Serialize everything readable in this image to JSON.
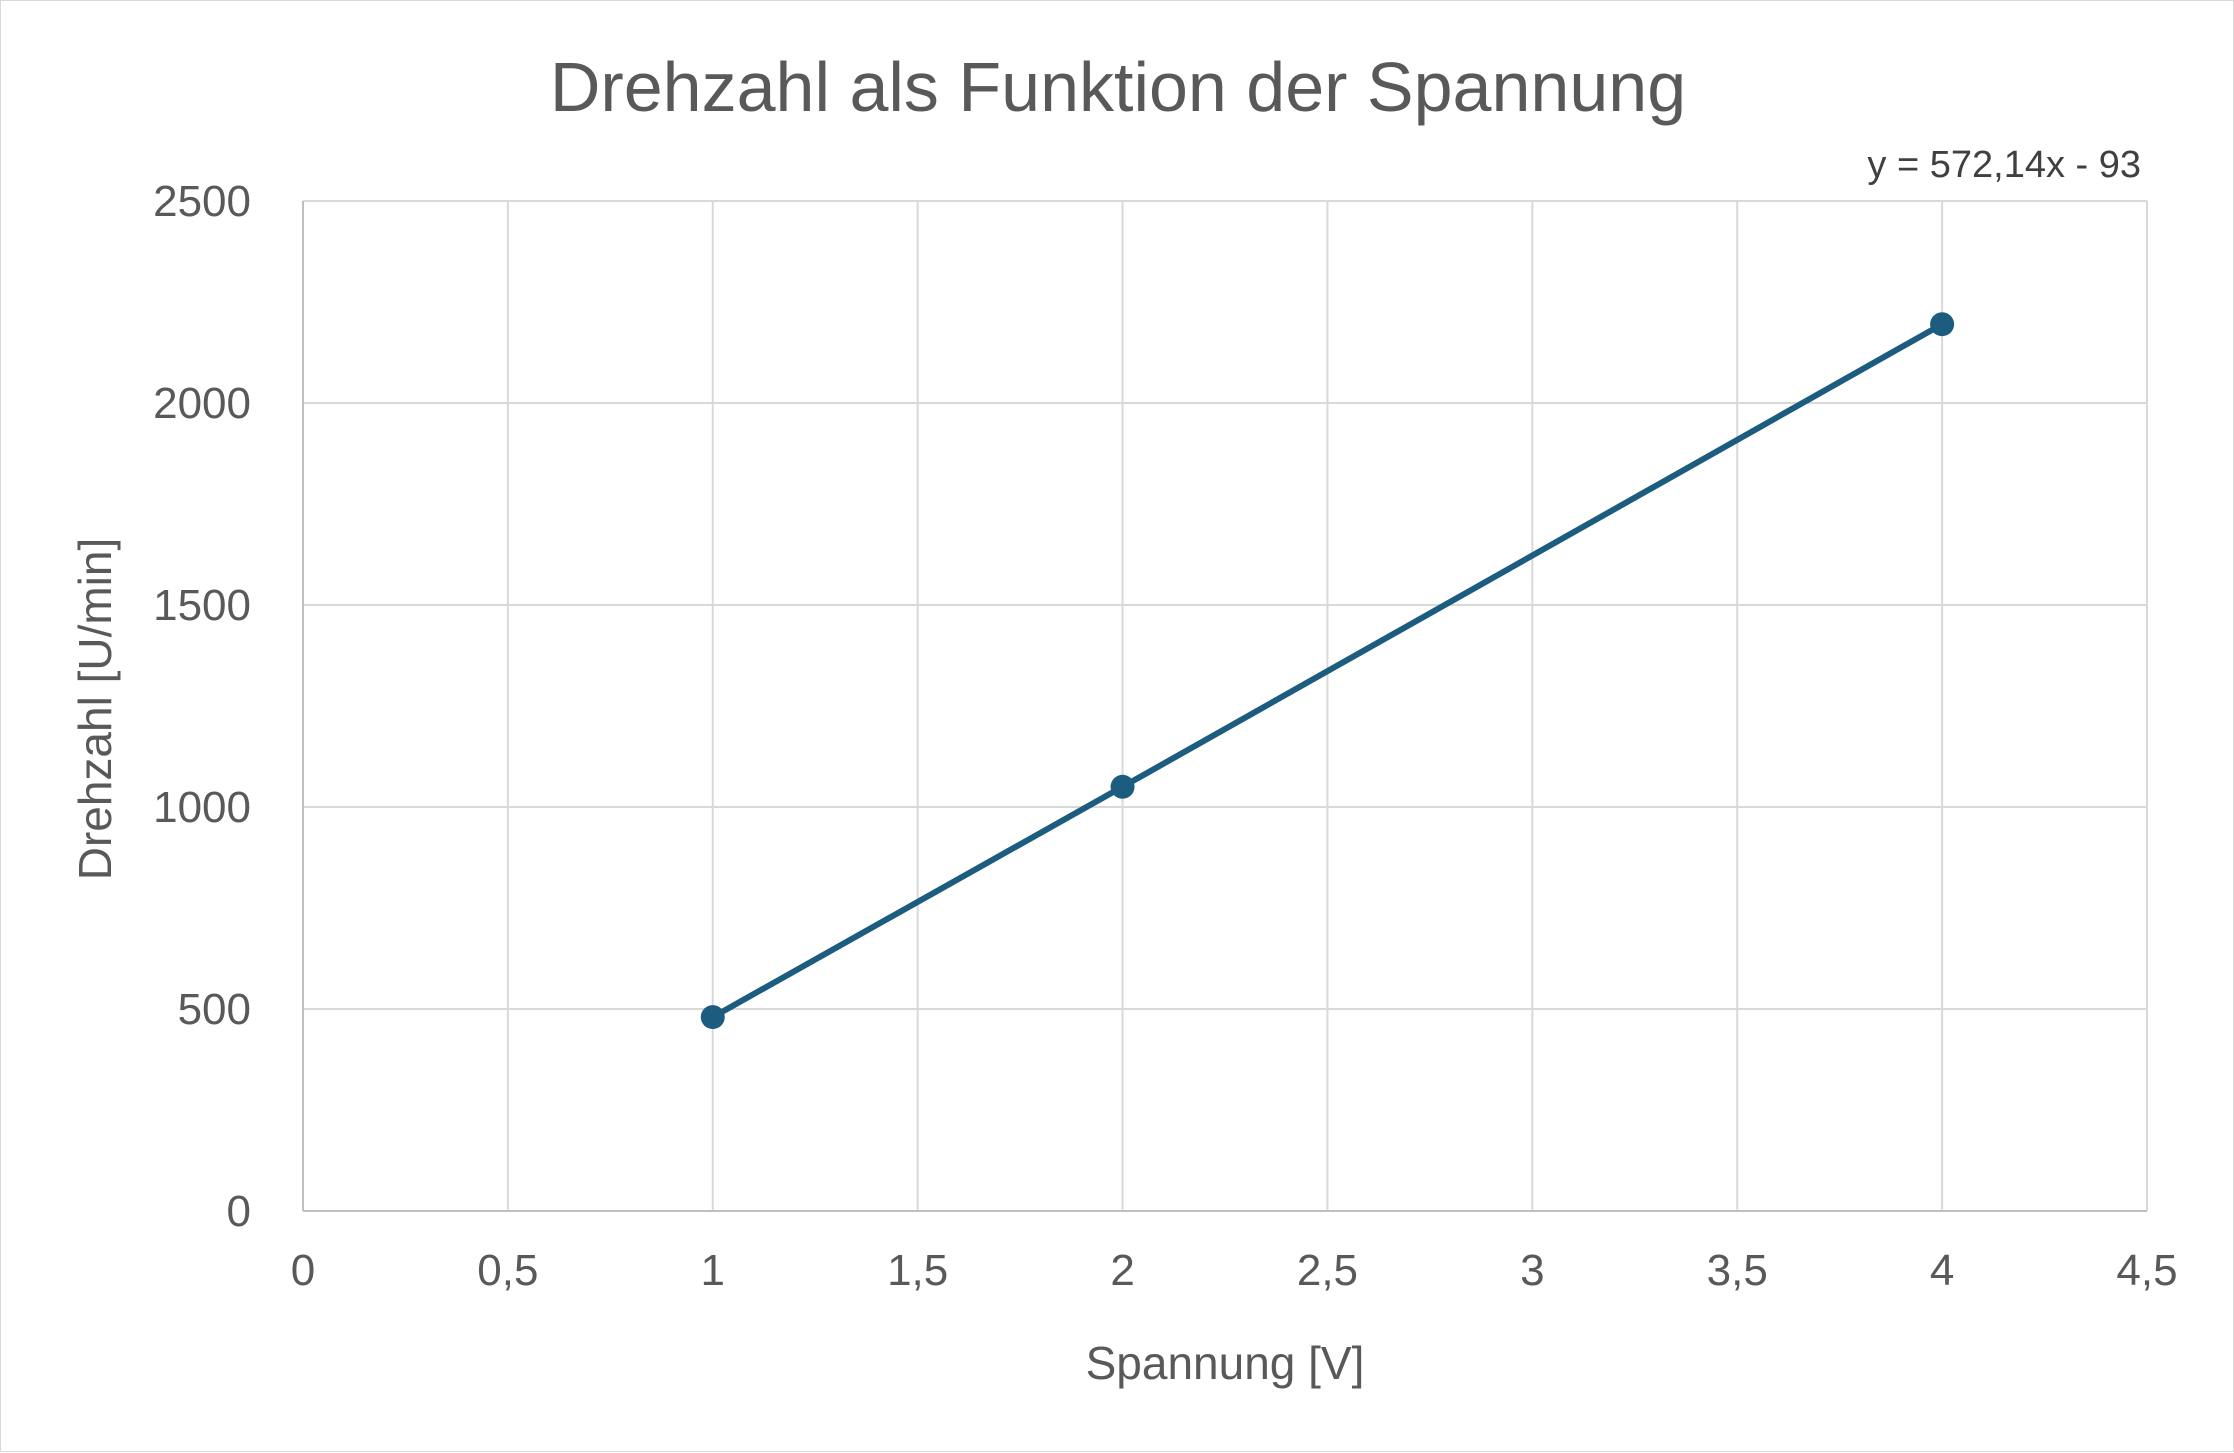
{
  "chart_data": {
    "type": "scatter",
    "title": "Drehzahl als Funktion der Spannung",
    "xlabel": "Spannung [V]",
    "ylabel": "Drehzahl [U/min]",
    "xlim": [
      0,
      4.5
    ],
    "ylim": [
      0,
      2500
    ],
    "x_ticks": [
      0,
      0.5,
      1,
      1.5,
      2,
      2.5,
      3,
      3.5,
      4,
      4.5
    ],
    "x_tick_labels": [
      "0",
      "0,5",
      "1",
      "1,5",
      "2",
      "2,5",
      "3",
      "3,5",
      "4",
      "4,5"
    ],
    "y_ticks": [
      0,
      500,
      1000,
      1500,
      2000,
      2500
    ],
    "y_tick_labels": [
      "0",
      "500",
      "1000",
      "1500",
      "2000",
      "2500"
    ],
    "grid": true,
    "series": [
      {
        "x": [
          1,
          2,
          4
        ],
        "y": [
          480,
          1050,
          2195
        ],
        "color": "#1b5c7f",
        "connected": true
      }
    ],
    "trendline_equation": "y = 572,14x - 93"
  }
}
